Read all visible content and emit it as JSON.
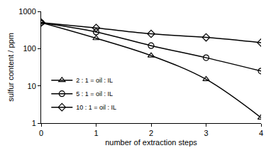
{
  "chart_data": {
    "type": "line",
    "x_label": "number of extraction steps",
    "y_label": "sulfur content / ppm",
    "x": [
      0,
      1,
      2,
      3,
      4
    ],
    "series": [
      {
        "name": "2 : 1 = oil : IL",
        "color": "#000000",
        "marker": "triangle",
        "line_style": "smooth",
        "values": [
          500,
          190,
          65,
          15,
          1.4
        ]
      },
      {
        "name": "5 : 1 = oil : IL",
        "color": "#000000",
        "marker": "circle",
        "line_style": "smooth",
        "values": [
          500,
          280,
          120,
          57,
          25
        ]
      },
      {
        "name": "10 : 1 = oil : IL",
        "color": "#000000",
        "marker": "diamond",
        "line_style": "smooth",
        "values": [
          500,
          360,
          250,
          200,
          145
        ]
      }
    ],
    "xlim": [
      0,
      4
    ],
    "xticks": [
      0,
      1,
      2,
      3,
      4
    ],
    "ylim": [
      1,
      1000
    ],
    "yticks": [
      1,
      10,
      100,
      1000
    ],
    "log": "y",
    "grid": false,
    "legend": "lower left"
  }
}
